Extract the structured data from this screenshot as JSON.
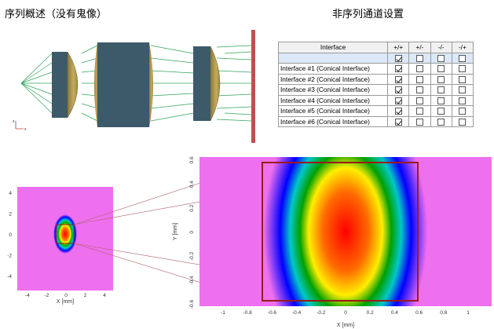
{
  "titles": {
    "left": "序列概述（没有鬼像）",
    "right": "非序列通道设置"
  },
  "interface_table": {
    "headers": [
      "Interface",
      "+/+",
      "+/-",
      "-/-",
      "-/+"
    ],
    "rows": [
      {
        "name": "",
        "checks": [
          true,
          false,
          false,
          false
        ]
      },
      {
        "name": "Interface #1 (Conical Interface)",
        "checks": [
          true,
          false,
          false,
          false
        ]
      },
      {
        "name": "Interface #2 (Conical Interface)",
        "checks": [
          true,
          false,
          false,
          false
        ]
      },
      {
        "name": "Interface #3 (Conical Interface)",
        "checks": [
          true,
          false,
          false,
          false
        ]
      },
      {
        "name": "Interface #4 (Conical Interface)",
        "checks": [
          true,
          false,
          false,
          false
        ]
      },
      {
        "name": "Interface #5 (Conical Interface)",
        "checks": [
          true,
          false,
          false,
          false
        ]
      },
      {
        "name": "Interface #6 (Conical Interface)",
        "checks": [
          true,
          false,
          false,
          false
        ]
      }
    ]
  },
  "small_plot": {
    "x_label": "X [mm]",
    "x_ticks": [
      "-4",
      "-2",
      "0",
      "2",
      "4"
    ],
    "y_ticks": [
      "4",
      "2",
      "0",
      "-2",
      "-4"
    ]
  },
  "large_plot": {
    "x_label": "X [mm]",
    "y_label": "Y [mm]",
    "x_ticks": [
      "-1",
      "-0.8",
      "-0.6",
      "-0.4",
      "-0.2",
      "0",
      "0.2",
      "0.4",
      "0.6",
      "0.8",
      "1"
    ],
    "y_ticks": [
      "0.6",
      "0.4",
      "0.2",
      "0",
      "-0.2",
      "-0.4",
      "-0.6"
    ]
  },
  "axis_triad": {
    "x": "x",
    "z": "z"
  },
  "colors": {
    "lens_body": "#3d5a6b",
    "lens_surface": "#b59c52",
    "ray": "#2fa35a",
    "detector": "#c0504d",
    "zoom_box": "#9b1b1b"
  }
}
